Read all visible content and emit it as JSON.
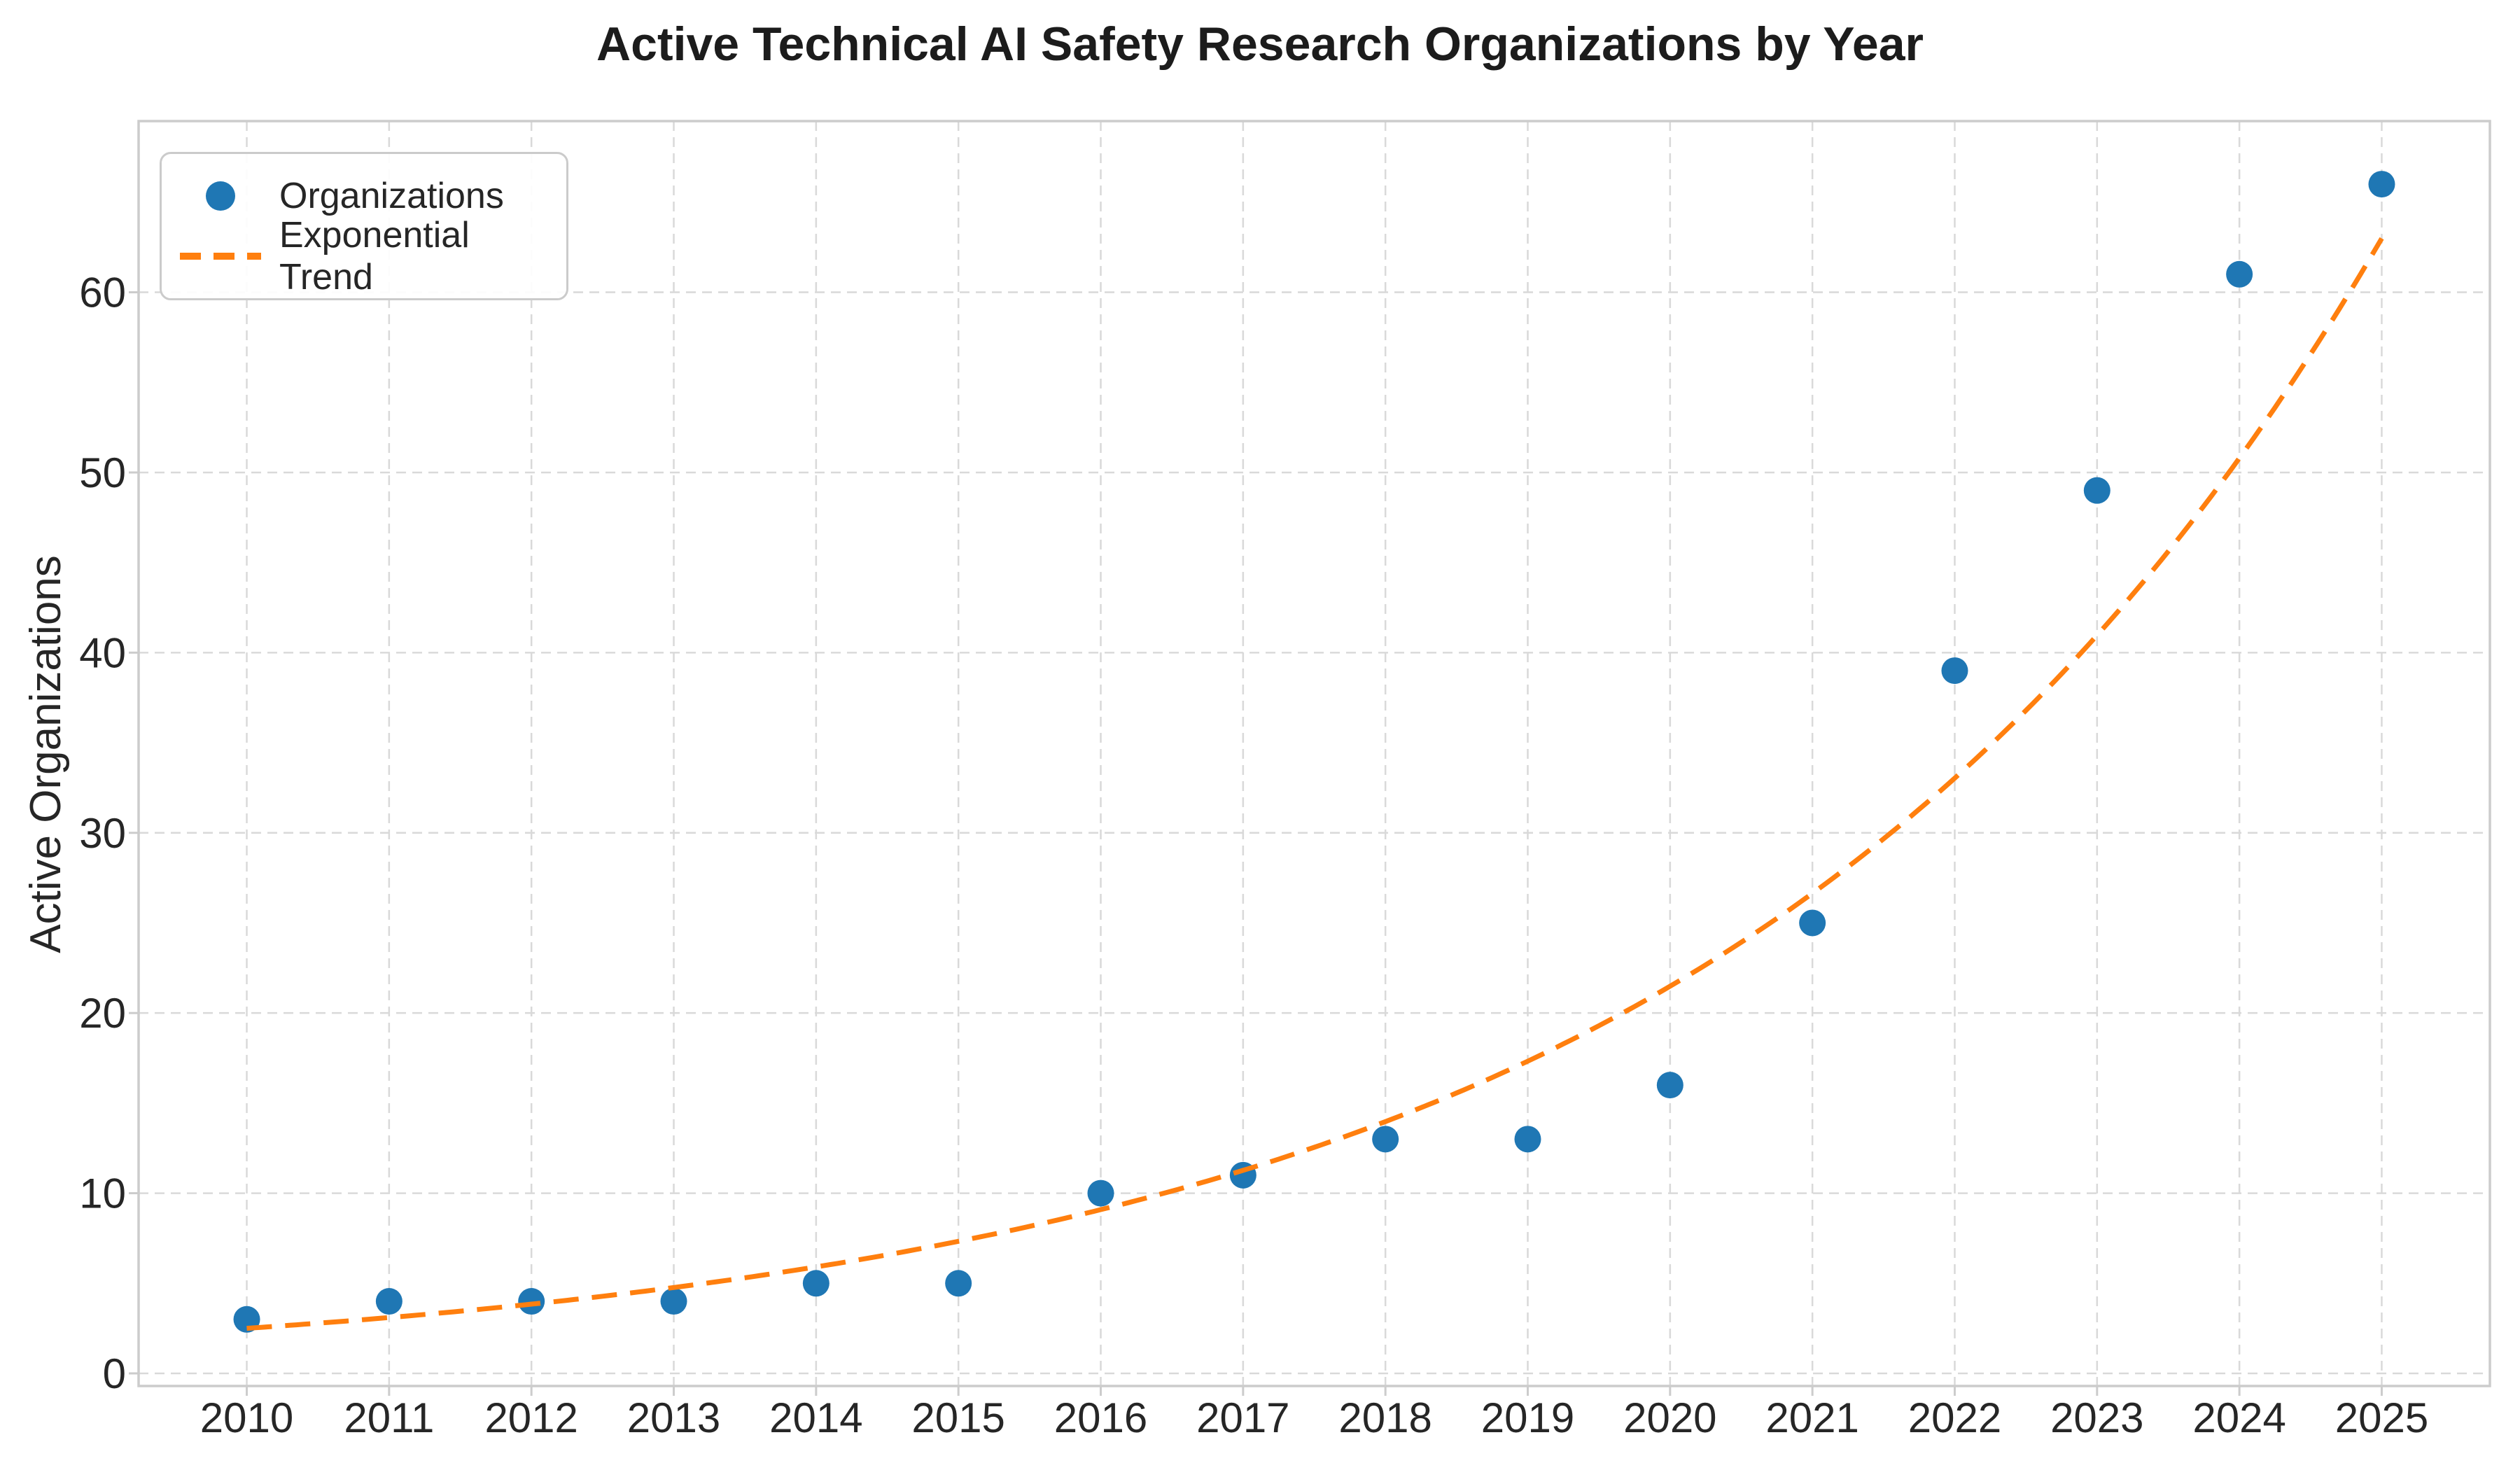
{
  "page": {
    "background": "#ffffff"
  },
  "chart_data": {
    "type": "scatter",
    "title": "Active Technical AI Safety Research Organizations by Year",
    "xlabel": "",
    "ylabel": "Active Organizations",
    "categories": [
      2010,
      2011,
      2012,
      2013,
      2014,
      2015,
      2016,
      2017,
      2018,
      2019,
      2020,
      2021,
      2022,
      2023,
      2024,
      2025
    ],
    "series": [
      {
        "name": "Organizations",
        "kind": "scatter",
        "marker": "circle",
        "color": "#1f77b4",
        "values": [
          3,
          4,
          4,
          4,
          5,
          5,
          10,
          11,
          13,
          13,
          16,
          25,
          39,
          49,
          61,
          66
        ]
      },
      {
        "name": "Exponential Trend",
        "kind": "line",
        "style": "dashed",
        "color": "#ff7f0e",
        "values": [
          2.5,
          3.1,
          3.8,
          4.8,
          5.9,
          7.3,
          9.1,
          11.3,
          14.0,
          17.3,
          21.5,
          26.6,
          33.0,
          41.0,
          50.9,
          63.0
        ],
        "fit": {
          "model": "exponential",
          "base": 2.5,
          "growth": 1.24,
          "start_x": 2010
        }
      }
    ],
    "xticks": [
      2010,
      2011,
      2012,
      2013,
      2014,
      2015,
      2016,
      2017,
      2018,
      2019,
      2020,
      2021,
      2022,
      2023,
      2024,
      2025
    ],
    "yticks": [
      0,
      10,
      20,
      30,
      40,
      50,
      60
    ],
    "xlim": [
      2009.24,
      2025.76
    ],
    "ylim": [
      -0.7,
      69.5
    ],
    "grid": true,
    "grid_style": "dashed",
    "legend_position": "upper left",
    "colors": {
      "point": "#1f77b4",
      "trend": "#ff7f0e",
      "grid": "#d9d9d9",
      "spine": "#cccccc",
      "tick": "#cccccc",
      "tick_label": "#262626",
      "title": "#1c1c1c"
    }
  }
}
